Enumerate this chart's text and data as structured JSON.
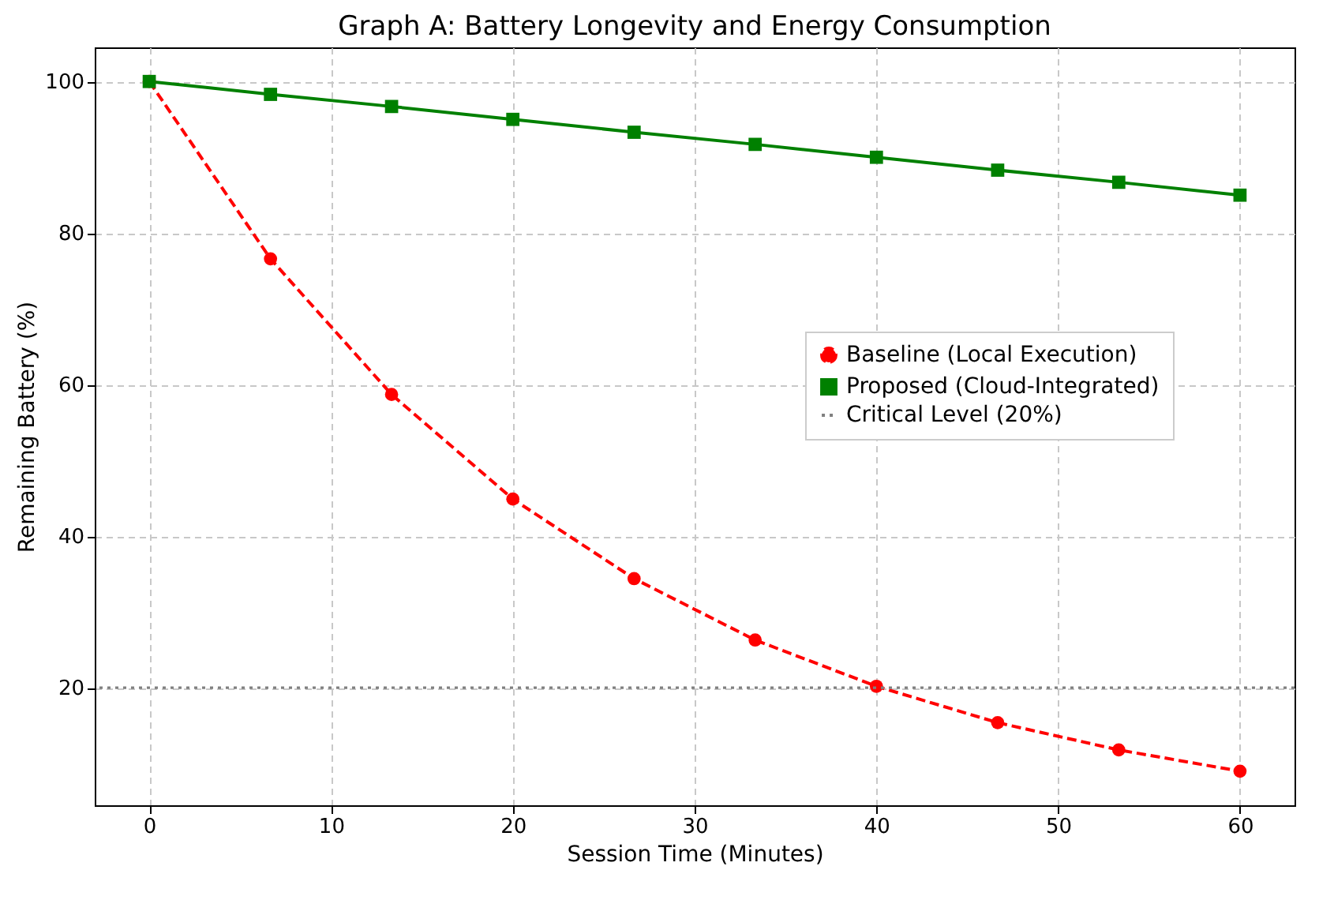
{
  "chart_data": {
    "type": "line",
    "title": "Graph A: Battery Longevity and Energy Consumption",
    "xlabel": "Session Time (Minutes)",
    "ylabel": "Remaining Battery (%)",
    "x": [
      0,
      6.67,
      13.33,
      20,
      26.67,
      33.33,
      40,
      46.67,
      53.33,
      60
    ],
    "series": [
      {
        "name": "Baseline (Local Execution)",
        "color": "#ff0000",
        "marker": "circle",
        "line_style": "dashed",
        "values": [
          100,
          76.6,
          58.7,
          44.9,
          34.4,
          26.3,
          20.2,
          15.4,
          11.8,
          9.0
        ]
      },
      {
        "name": "Proposed (Cloud-Integrated)",
        "color": "#008000",
        "marker": "square",
        "line_style": "solid",
        "values": [
          100,
          98.3,
          96.7,
          95,
          93.3,
          91.7,
          90,
          88.3,
          86.7,
          85
        ]
      }
    ],
    "ref_lines": [
      {
        "axis": "y",
        "value": 20,
        "label": "Critical Level (20%)",
        "color": "#808080",
        "line_style": "dotted"
      }
    ],
    "xlim": [
      -3,
      63
    ],
    "ylim": [
      4.5,
      104.5
    ],
    "xticks": [
      0,
      10,
      20,
      30,
      40,
      50,
      60
    ],
    "yticks": [
      20,
      40,
      60,
      80,
      100
    ],
    "grid": true,
    "legend": "right"
  }
}
